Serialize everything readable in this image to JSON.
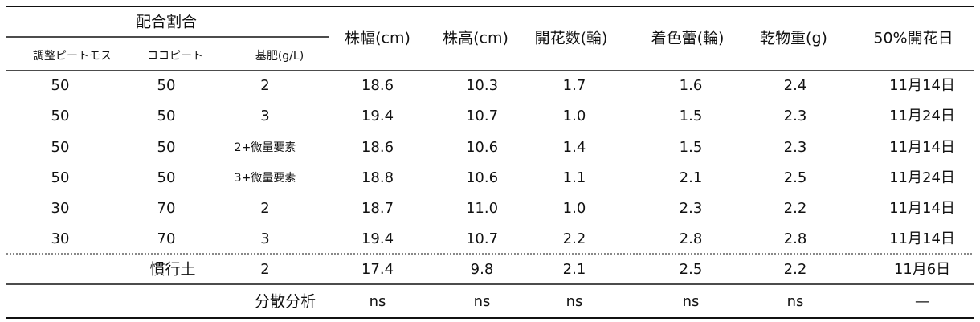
{
  "table": {
    "group_header": "配合割合",
    "sub_headers": [
      "調整ピートモス",
      "ココピート",
      "基肥(g/L)"
    ],
    "headers": [
      "株幅(cm)",
      "株高(cm)",
      "開花数(輪)",
      "着色蕾(輪)",
      "乾物重(g)",
      "50%開花日"
    ],
    "rows": [
      [
        "50",
        "50",
        "2",
        "18.6",
        "10.3",
        "1.7",
        "1.6",
        "2.4",
        "11月14日"
      ],
      [
        "50",
        "50",
        "3",
        "19.4",
        "10.7",
        "1.0",
        "1.5",
        "2.3",
        "11月24日"
      ],
      [
        "50",
        "50",
        "2+微量要素",
        "18.6",
        "10.6",
        "1.4",
        "1.5",
        "2.3",
        "11月14日"
      ],
      [
        "50",
        "50",
        "3+微量要素",
        "18.8",
        "10.6",
        "1.1",
        "2.1",
        "2.5",
        "11月24日"
      ],
      [
        "30",
        "70",
        "2",
        "18.7",
        "11.0",
        "1.0",
        "2.3",
        "2.2",
        "11月14日"
      ],
      [
        "30",
        "70",
        "3",
        "19.4",
        "10.7",
        "2.2",
        "2.8",
        "2.8",
        "11月14日"
      ]
    ],
    "control": {
      "label": "慣行土",
      "fertilizer": "2",
      "values": [
        "17.4",
        "9.8",
        "2.1",
        "2.5",
        "2.2",
        "11月6日"
      ]
    },
    "anova": {
      "label": "分散分析",
      "values": [
        "ns",
        "ns",
        "ns",
        "ns",
        "ns",
        "—"
      ]
    }
  }
}
